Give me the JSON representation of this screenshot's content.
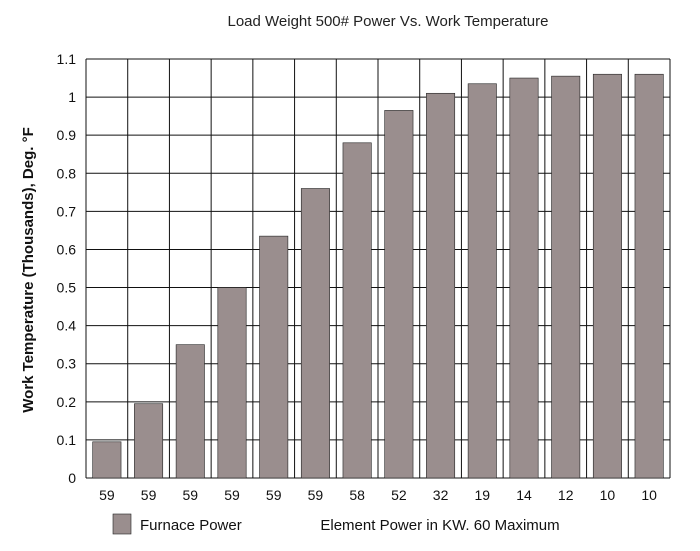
{
  "chart_data": {
    "type": "bar",
    "title": "Load Weight 500# Power Vs. Work Temperature",
    "ylabel": "Work Temperature (Thousands), Deg. °F",
    "xlabel": "Element Power in KW. 60 Maximum",
    "categories": [
      "59",
      "59",
      "59",
      "59",
      "59",
      "59",
      "58",
      "52",
      "32",
      "19",
      "14",
      "12",
      "10",
      "10"
    ],
    "series": [
      {
        "name": "Furnace Power",
        "values": [
          0.095,
          0.195,
          0.35,
          0.5,
          0.635,
          0.76,
          0.88,
          0.965,
          1.01,
          1.035,
          1.05,
          1.055,
          1.06,
          1.06
        ],
        "color": "#9a8e8e"
      }
    ],
    "ylim": [
      0,
      1.1
    ],
    "yticks": [
      "0",
      "0.1",
      "0.2",
      "0.3",
      "0.4",
      "0.5",
      "0.6",
      "0.7",
      "0.8",
      "0.9",
      "1",
      "1.1"
    ],
    "grid": true,
    "legend_position": "bottom-left"
  }
}
